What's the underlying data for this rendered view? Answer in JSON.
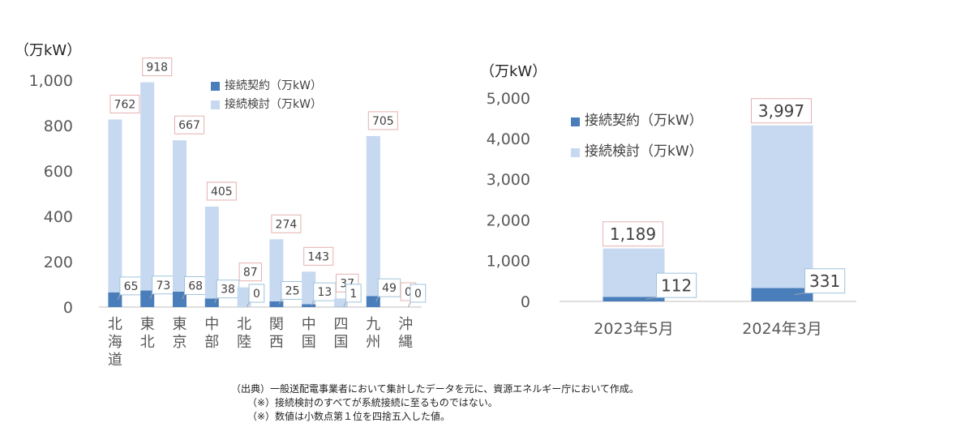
{
  "chart_data": [
    {
      "type": "bar",
      "stacked": true,
      "ylabel": "（万kW）",
      "ylim": [
        0,
        1000
      ],
      "yticks": [
        "0",
        "200",
        "400",
        "600",
        "800",
        "1,000"
      ],
      "categories": [
        "北海道",
        "東北",
        "東京",
        "中部",
        "北陸",
        "関西",
        "中国",
        "四国",
        "九州",
        "沖縄"
      ],
      "series": [
        {
          "name": "接続契約（万kW）",
          "values": [
            65,
            73,
            68,
            38,
            0,
            25,
            13,
            1,
            49,
            0
          ],
          "labels": [
            "65",
            "73",
            "68",
            "38",
            "0",
            "25",
            "13",
            "1",
            "49",
            "0"
          ],
          "color": "#4a7ebb"
        },
        {
          "name": "接続検討（万kW）",
          "values": [
            762,
            918,
            667,
            405,
            87,
            274,
            143,
            37,
            705,
            0
          ],
          "labels": [
            "762",
            "918",
            "667",
            "405",
            "87",
            "274",
            "143",
            "37",
            "705",
            "0"
          ],
          "color": "#c6d9f0"
        }
      ],
      "legend": "top-right",
      "grid": false
    },
    {
      "type": "bar",
      "stacked": true,
      "ylabel": "（万kW）",
      "ylim": [
        0,
        5000
      ],
      "yticks": [
        "0",
        "1,000",
        "2,000",
        "3,000",
        "4,000",
        "5,000"
      ],
      "categories": [
        "2023年5月",
        "2024年3月"
      ],
      "series": [
        {
          "name": "接続契約（万kW）",
          "values": [
            112,
            331
          ],
          "labels": [
            "112",
            "331"
          ],
          "color": "#4a7ebb"
        },
        {
          "name": "接続検討（万kW）",
          "values": [
            1189,
            3997
          ],
          "labels": [
            "1,189",
            "3,997"
          ],
          "color": "#c6d9f0"
        }
      ],
      "legend": "top-left",
      "grid": false
    }
  ],
  "notes": [
    "（出典）一般送配電事業者において集計したデータを元に、資源エネルギー庁において作成。",
    "（※）接続検討のすべてが系統接続に至るものではない。",
    "（※）数値は小数点第１位を四捨五入した値。"
  ]
}
